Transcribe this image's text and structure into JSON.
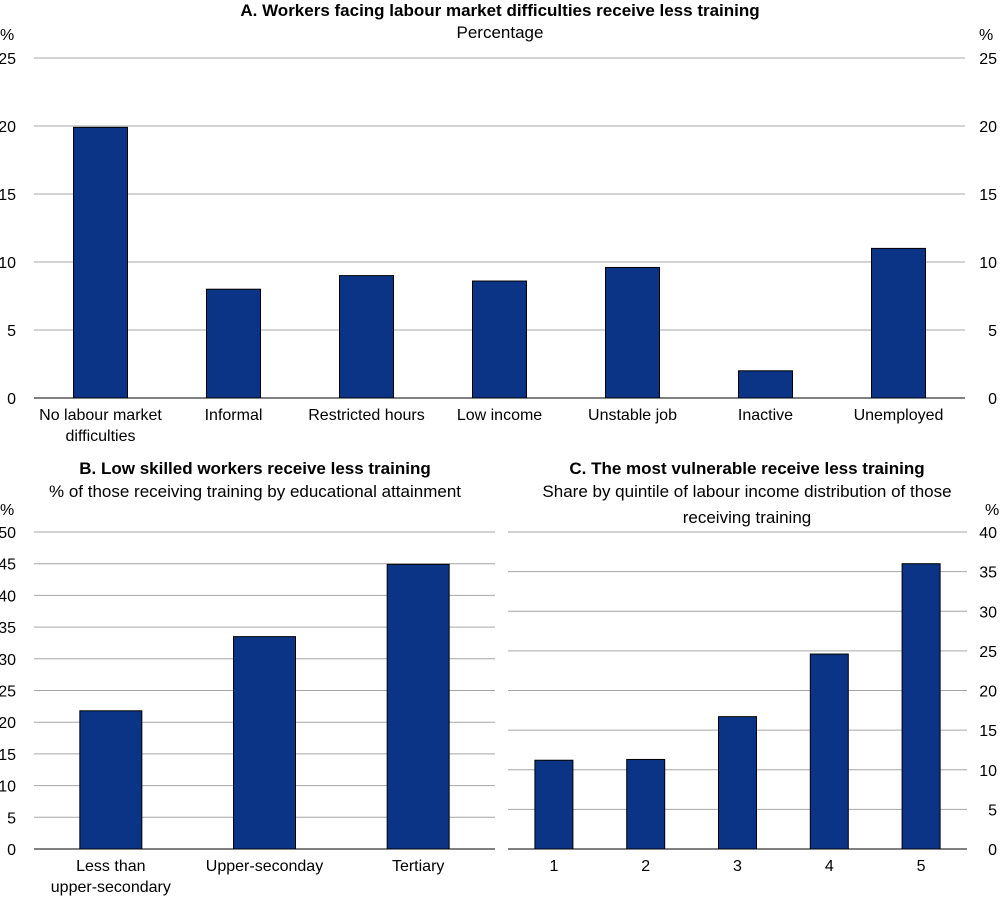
{
  "colors": {
    "bar": "#0c3486",
    "bar_edge": "#000000",
    "grid": "#a6a6a6"
  },
  "chart_data": [
    {
      "id": "A",
      "type": "bar",
      "title": "A. Workers facing labour market difficulties receive less training",
      "subtitle": "Percentage",
      "ylabel_left": "%",
      "ylabel_right": "%",
      "ylim": [
        0,
        25
      ],
      "yticks": [
        0,
        5,
        10,
        15,
        20,
        25
      ],
      "grid": true,
      "categories": [
        [
          "No labour market",
          "difficulties"
        ],
        [
          "Informal"
        ],
        [
          "Restricted hours"
        ],
        [
          "Low income"
        ],
        [
          "Unstable job"
        ],
        [
          "Inactive"
        ],
        [
          "Unemployed"
        ]
      ],
      "values": [
        19.9,
        8.0,
        9.0,
        8.6,
        9.6,
        2.0,
        11.0
      ]
    },
    {
      "id": "B",
      "type": "bar",
      "title": "B. Low skilled workers receive less training",
      "subtitle": "% of those receiving training by educational attainment",
      "ylabel_left": "%",
      "ylim": [
        0,
        50
      ],
      "yticks": [
        0,
        5,
        10,
        15,
        20,
        25,
        30,
        35,
        40,
        45,
        50
      ],
      "grid": true,
      "categories": [
        [
          "Less than",
          "upper-secondary"
        ],
        [
          "Upper-seconday"
        ],
        [
          "Tertiary"
        ]
      ],
      "values": [
        21.8,
        33.5,
        44.9
      ]
    },
    {
      "id": "C",
      "type": "bar",
      "title": "C. The most vulnerable receive less training",
      "subtitle": [
        "Share by quintile of labour income distribution of those",
        "receiving training"
      ],
      "ylabel_right": "%",
      "ylim": [
        0,
        40
      ],
      "yticks": [
        0,
        5,
        10,
        15,
        20,
        25,
        30,
        35,
        40
      ],
      "grid": true,
      "categories": [
        [
          "1"
        ],
        [
          "2"
        ],
        [
          "3"
        ],
        [
          "4"
        ],
        [
          "5"
        ]
      ],
      "values": [
        11.2,
        11.3,
        16.7,
        24.6,
        36.0
      ]
    }
  ]
}
